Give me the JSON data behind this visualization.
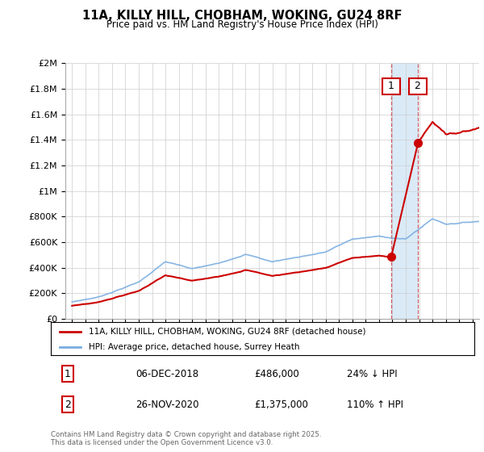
{
  "title": "11A, KILLY HILL, CHOBHAM, WOKING, GU24 8RF",
  "subtitle": "Price paid vs. HM Land Registry's House Price Index (HPI)",
  "footer": "Contains HM Land Registry data © Crown copyright and database right 2025.\nThis data is licensed under the Open Government Licence v3.0.",
  "legend_label_red": "11A, KILLY HILL, CHOBHAM, WOKING, GU24 8RF (detached house)",
  "legend_label_blue": "HPI: Average price, detached house, Surrey Heath",
  "transaction1_label": "1",
  "transaction1_date": "06-DEC-2018",
  "transaction1_price": "£486,000",
  "transaction1_hpi": "24% ↓ HPI",
  "transaction2_label": "2",
  "transaction2_date": "26-NOV-2020",
  "transaction2_price": "£1,375,000",
  "transaction2_hpi": "110% ↑ HPI",
  "color_red": "#cc0000",
  "color_blue": "#7aade0",
  "color_shaded": "#daeaf7",
  "ylim": [
    0,
    2000000
  ],
  "yticks": [
    0,
    200000,
    400000,
    600000,
    800000,
    1000000,
    1200000,
    1400000,
    1600000,
    1800000,
    2000000
  ],
  "xlim_start": 1994.5,
  "xlim_end": 2025.5,
  "transaction1_x": 2018.92,
  "transaction2_x": 2020.9,
  "transaction1_y": 486000,
  "transaction2_y": 1375000
}
